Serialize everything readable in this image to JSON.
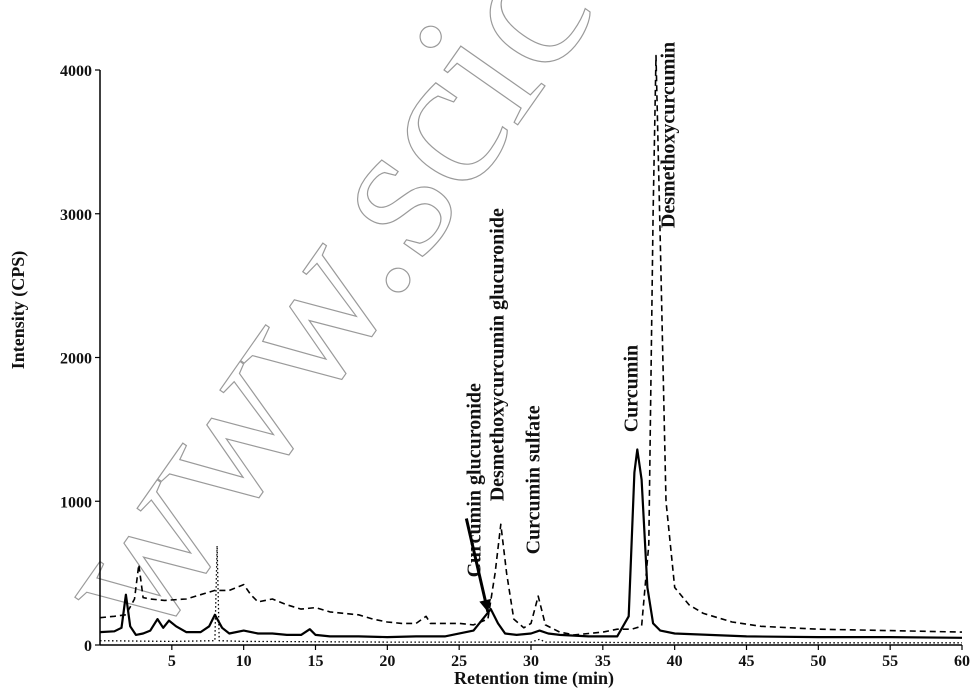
{
  "chart_data": {
    "type": "line",
    "title": "",
    "xlabel": "Retention time (min)",
    "ylabel": "Intensity (CPS)",
    "xlim": [
      0,
      60
    ],
    "ylim": [
      0,
      4000
    ],
    "x_ticks": [
      5,
      10,
      15,
      20,
      25,
      30,
      35,
      40,
      45,
      50,
      55,
      60
    ],
    "y_ticks": [
      0,
      1000,
      2000,
      3000,
      4000
    ],
    "grid": false,
    "legend": "none",
    "series": [
      {
        "style": "solid",
        "color": "#000000",
        "points": [
          [
            0,
            90
          ],
          [
            1,
            95
          ],
          [
            1.5,
            120
          ],
          [
            1.8,
            350
          ],
          [
            2.1,
            130
          ],
          [
            2.5,
            70
          ],
          [
            3,
            80
          ],
          [
            3.5,
            100
          ],
          [
            4,
            180
          ],
          [
            4.4,
            120
          ],
          [
            4.8,
            170
          ],
          [
            5.3,
            130
          ],
          [
            6,
            90
          ],
          [
            7,
            90
          ],
          [
            7.6,
            130
          ],
          [
            8,
            210
          ],
          [
            8.5,
            120
          ],
          [
            9,
            80
          ],
          [
            10,
            100
          ],
          [
            11,
            80
          ],
          [
            12,
            80
          ],
          [
            13,
            70
          ],
          [
            14,
            70
          ],
          [
            14.6,
            110
          ],
          [
            15,
            70
          ],
          [
            16,
            60
          ],
          [
            18,
            60
          ],
          [
            20,
            55
          ],
          [
            22,
            60
          ],
          [
            24,
            60
          ],
          [
            26,
            100
          ],
          [
            26.8,
            200
          ],
          [
            27.2,
            250
          ],
          [
            27.7,
            150
          ],
          [
            28.2,
            80
          ],
          [
            29,
            70
          ],
          [
            30,
            80
          ],
          [
            30.6,
            100
          ],
          [
            31.2,
            80
          ],
          [
            32,
            70
          ],
          [
            34,
            60
          ],
          [
            36,
            60
          ],
          [
            36.8,
            200
          ],
          [
            37.2,
            1200
          ],
          [
            37.4,
            1360
          ],
          [
            37.7,
            1150
          ],
          [
            38.1,
            400
          ],
          [
            38.5,
            150
          ],
          [
            39,
            100
          ],
          [
            40,
            80
          ],
          [
            45,
            60
          ],
          [
            50,
            55
          ],
          [
            55,
            55
          ],
          [
            60,
            50
          ]
        ]
      },
      {
        "style": "dashed",
        "color": "#000000",
        "points": [
          [
            0,
            190
          ],
          [
            1,
            200
          ],
          [
            1.8,
            210
          ],
          [
            2.4,
            320
          ],
          [
            2.7,
            560
          ],
          [
            3,
            330
          ],
          [
            3.5,
            320
          ],
          [
            4.5,
            310
          ],
          [
            6,
            320
          ],
          [
            7,
            350
          ],
          [
            8,
            380
          ],
          [
            9,
            380
          ],
          [
            10,
            420
          ],
          [
            10.5,
            350
          ],
          [
            11,
            300
          ],
          [
            12,
            320
          ],
          [
            13,
            280
          ],
          [
            14,
            250
          ],
          [
            15,
            260
          ],
          [
            16,
            230
          ],
          [
            17,
            220
          ],
          [
            18,
            210
          ],
          [
            19,
            180
          ],
          [
            20,
            160
          ],
          [
            21,
            150
          ],
          [
            22,
            150
          ],
          [
            22.7,
            200
          ],
          [
            23,
            150
          ],
          [
            24,
            150
          ],
          [
            25,
            150
          ],
          [
            26,
            140
          ],
          [
            27,
            180
          ],
          [
            27.5,
            500
          ],
          [
            27.9,
            840
          ],
          [
            28.3,
            500
          ],
          [
            28.8,
            180
          ],
          [
            29.5,
            120
          ],
          [
            30,
            150
          ],
          [
            30.5,
            340
          ],
          [
            31,
            140
          ],
          [
            32,
            90
          ],
          [
            33,
            70
          ],
          [
            34,
            80
          ],
          [
            35,
            90
          ],
          [
            36,
            110
          ],
          [
            37,
            110
          ],
          [
            37.7,
            130
          ],
          [
            38.2,
            700
          ],
          [
            38.5,
            3000
          ],
          [
            38.7,
            4100
          ],
          [
            39,
            2800
          ],
          [
            39.4,
            1000
          ],
          [
            40,
            400
          ],
          [
            41,
            280
          ],
          [
            42,
            220
          ],
          [
            44,
            160
          ],
          [
            46,
            130
          ],
          [
            50,
            110
          ],
          [
            55,
            100
          ],
          [
            60,
            90
          ]
        ]
      },
      {
        "style": "dotted",
        "color": "#000000",
        "points": [
          [
            0,
            30
          ],
          [
            5,
            25
          ],
          [
            8,
            30
          ],
          [
            8.15,
            690
          ],
          [
            8.3,
            30
          ],
          [
            10,
            25
          ],
          [
            20,
            20
          ],
          [
            30,
            20
          ],
          [
            30.6,
            40
          ],
          [
            31,
            20
          ],
          [
            40,
            15
          ],
          [
            50,
            15
          ],
          [
            60,
            15
          ]
        ]
      }
    ],
    "annotations": [
      {
        "text": "Curcumin glucuronide",
        "x": 26.5,
        "y": 470
      },
      {
        "text": "Desmethoxycurcumin glucuronide",
        "x": 28.1,
        "y": 1000
      },
      {
        "text": "Curcumin sulfate",
        "x": 30.6,
        "y": 630
      },
      {
        "text": "Curcumin",
        "x": 37.4,
        "y": 1480
      },
      {
        "text": "Desmethoxycurcumin",
        "x": 40.0,
        "y": 2900
      }
    ],
    "arrow": {
      "from": [
        25.5,
        880
      ],
      "to": [
        27.0,
        230
      ]
    }
  },
  "watermark": "www.scic"
}
